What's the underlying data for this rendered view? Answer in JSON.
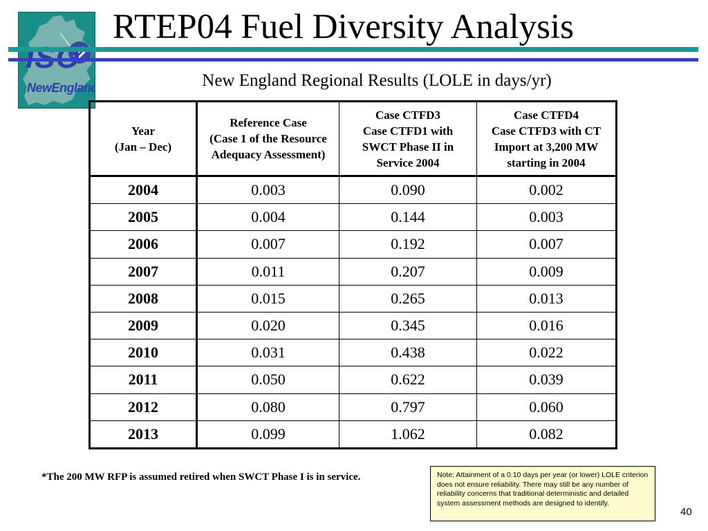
{
  "logo": {
    "line1": "ISO",
    "line2": "NewEngland",
    "bg_color": "#1a8f8a",
    "text_color": "#2a3fa8"
  },
  "title": "RTEP04 Fuel Diversity Analysis",
  "subtitle": "New England Regional Results (LOLE in days/yr)",
  "table": {
    "headers": [
      [
        "Year",
        "(Jan – Dec)"
      ],
      [
        "Reference Case",
        "(Case 1 of the Resource Adequacy Assessment)"
      ],
      [
        "Case CTFD3",
        "Case CTFD1 with SWCT Phase II in Service 2004"
      ],
      [
        "Case CTFD4",
        "Case CTFD3 with CT Import at 3,200 MW starting in 2004"
      ]
    ],
    "rows": [
      [
        "2004",
        "0.003",
        "0.090",
        "0.002"
      ],
      [
        "2005",
        "0.004",
        "0.144",
        "0.003"
      ],
      [
        "2006",
        "0.007",
        "0.192",
        "0.007"
      ],
      [
        "2007",
        "0.011",
        "0.207",
        "0.009"
      ],
      [
        "2008",
        "0.015",
        "0.265",
        "0.013"
      ],
      [
        "2009",
        "0.020",
        "0.345",
        "0.016"
      ],
      [
        "2010",
        "0.031",
        "0.438",
        "0.022"
      ],
      [
        "2011",
        "0.050",
        "0.622",
        "0.039"
      ],
      [
        "2012",
        "0.080",
        "0.797",
        "0.060"
      ],
      [
        "2013",
        "0.099",
        "1.062",
        "0.082"
      ]
    ]
  },
  "footnote": "*The 200 MW RFP is assumed retired when SWCT Phase I is in service.",
  "note": "Note: Attainment of a 0.10 days per year (or lower) LOLE criterion does not ensure reliability.  There may still be any number of reliability concerns that traditional deterministic and detailed system assessment methods are designed to identify.",
  "page_number": "40",
  "colors": {
    "teal_bar": "#1a9a95",
    "blue_bar": "#3b3fc0",
    "note_bg": "#fdfdcf"
  }
}
